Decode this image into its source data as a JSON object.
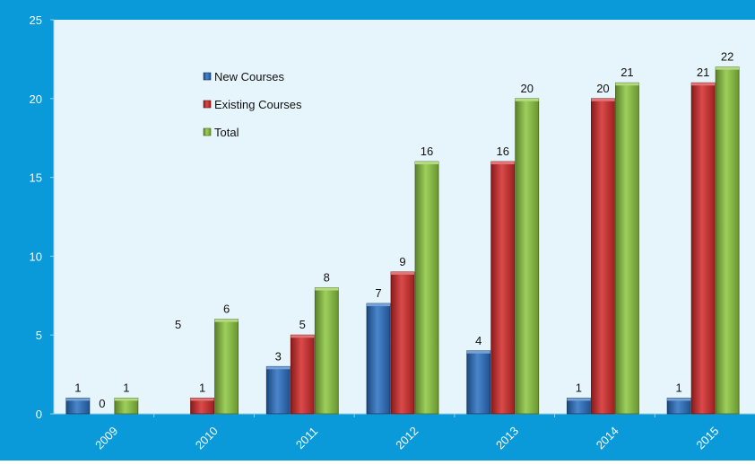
{
  "chart_data": {
    "type": "bar",
    "categories": [
      "2009",
      "2010",
      "2011",
      "2012",
      "2013",
      "2014",
      "2015"
    ],
    "series": [
      {
        "name": "New Courses",
        "values": [
          1,
          5,
          3,
          7,
          4,
          1,
          1
        ],
        "color": "#2a6fc2"
      },
      {
        "name": "Existing Courses",
        "values": [
          0,
          1,
          5,
          9,
          16,
          20,
          21
        ],
        "color": "#d32a2a"
      },
      {
        "name": "Total",
        "values": [
          1,
          6,
          8,
          16,
          20,
          21,
          22
        ],
        "color": "#8cc63f"
      }
    ],
    "data_labels": [
      [
        "1",
        "5",
        "3",
        "7",
        "4",
        "1",
        "1"
      ],
      [
        "0",
        "1",
        "5",
        "9",
        "16",
        "20",
        "21"
      ],
      [
        "1",
        "6",
        "8",
        "16",
        "20",
        "21",
        "22"
      ]
    ],
    "missing_bars": [
      [],
      [
        0
      ],
      [],
      [],
      [],
      [],
      []
    ],
    "ylim": [
      0,
      25
    ],
    "yticks": [
      0,
      5,
      10,
      15,
      20,
      25
    ],
    "grid": false,
    "legend_position": "top-left inside plot",
    "title": "",
    "xlabel": "",
    "ylabel": "",
    "colors": {
      "frame": "#0a9ad9",
      "plot_bg": "#e6f4fb"
    }
  }
}
